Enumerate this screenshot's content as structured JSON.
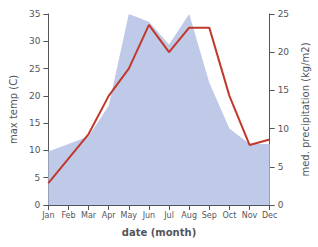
{
  "chart_data": {
    "type": "line",
    "categories": [
      "Jan",
      "Feb",
      "Mar",
      "Apr",
      "May",
      "Jun",
      "Jul",
      "Aug",
      "Sep",
      "Oct",
      "Nov",
      "Dec"
    ],
    "xlabel": "date (month)",
    "ylabel": "max temp (C)",
    "y2label": "med. precipitation (kg/m2)",
    "series": [
      {
        "type": "area",
        "axis": "y2",
        "color": "#bfc9e8",
        "values": [
          7,
          8,
          9,
          13,
          25,
          24,
          21,
          25,
          16,
          10,
          8,
          8
        ]
      },
      {
        "type": "line",
        "color": "#c0392b",
        "values": [
          4,
          8.5,
          13,
          20,
          25,
          33,
          28,
          32.5,
          32.5,
          20,
          11,
          12
        ]
      }
    ],
    "ylim": [
      0,
      35
    ],
    "yticks": [
      0,
      5,
      10,
      15,
      20,
      25,
      30,
      35
    ],
    "y2lim": [
      0,
      25
    ],
    "y2ticks": [
      0,
      5,
      10,
      15,
      20,
      25
    ],
    "grid": false
  }
}
